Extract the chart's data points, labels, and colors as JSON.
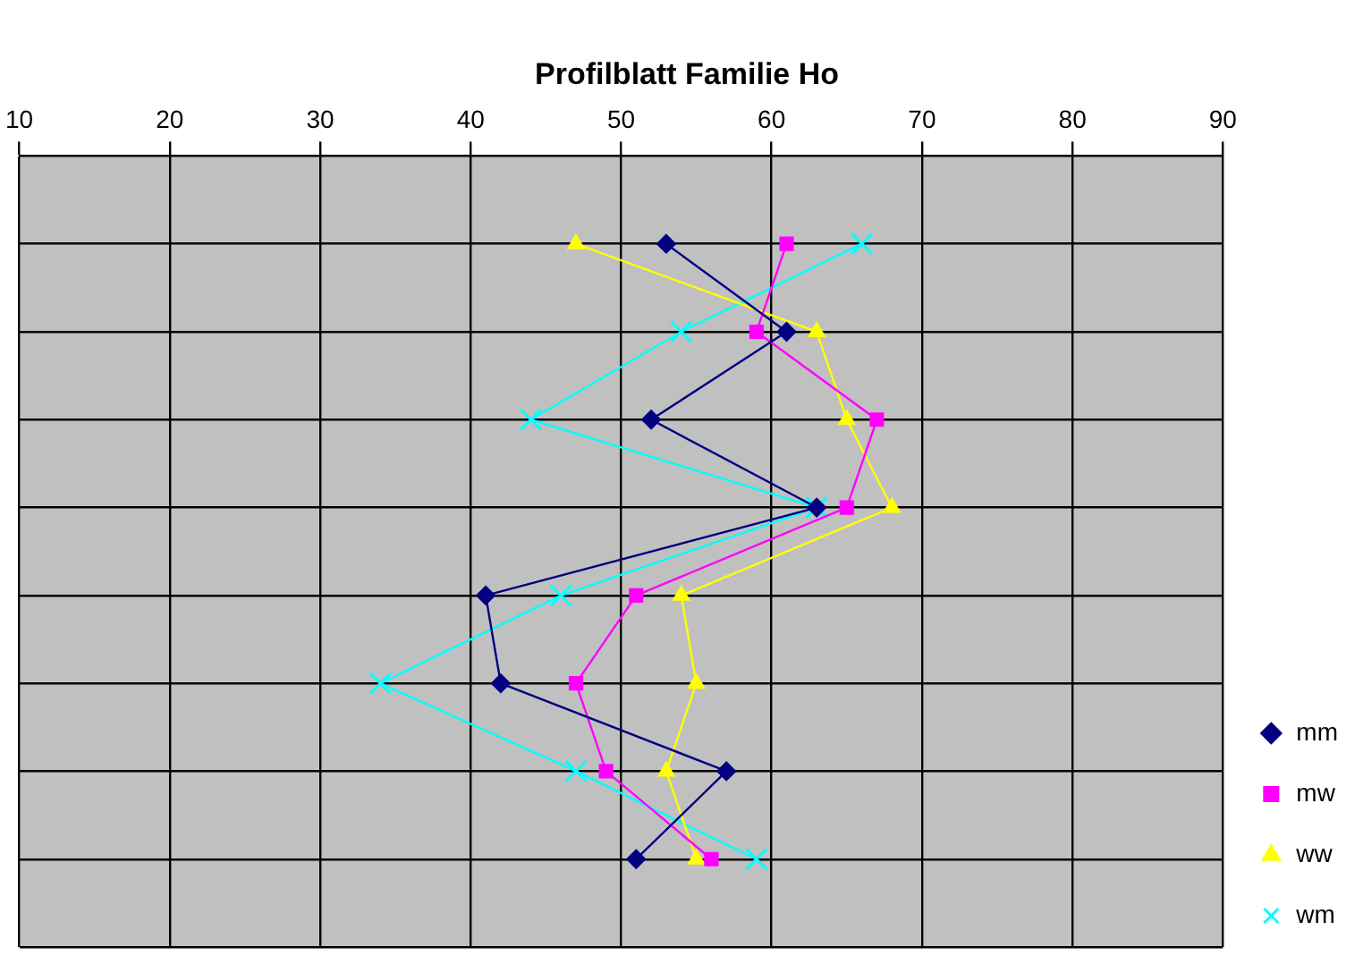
{
  "chart_data": {
    "type": "line",
    "title": "Profilblatt Familie Ho",
    "orientation": "horizontal",
    "categories": [
      null,
      null,
      null,
      null,
      null,
      null,
      null,
      null
    ],
    "series": [
      {
        "name": "mm",
        "color": "#000080",
        "marker": "diamond",
        "values": [
          53,
          61,
          52,
          63,
          41,
          42,
          57,
          51
        ]
      },
      {
        "name": "mw",
        "color": "#ff00ff",
        "marker": "square",
        "values": [
          61,
          59,
          67,
          65,
          51,
          47,
          49,
          56
        ]
      },
      {
        "name": "ww",
        "color": "#ffff00",
        "marker": "triangle",
        "values": [
          47,
          63,
          65,
          68,
          54,
          55,
          53,
          55
        ]
      },
      {
        "name": "wm",
        "color": "#00ffff",
        "marker": "cross",
        "values": [
          66,
          54,
          44,
          63,
          46,
          34,
          47,
          59
        ]
      }
    ],
    "xlim": [
      10,
      90
    ],
    "xticks": [
      10,
      20,
      30,
      40,
      50,
      60,
      70,
      80,
      90
    ],
    "grid": true,
    "legend": "bottom right"
  }
}
